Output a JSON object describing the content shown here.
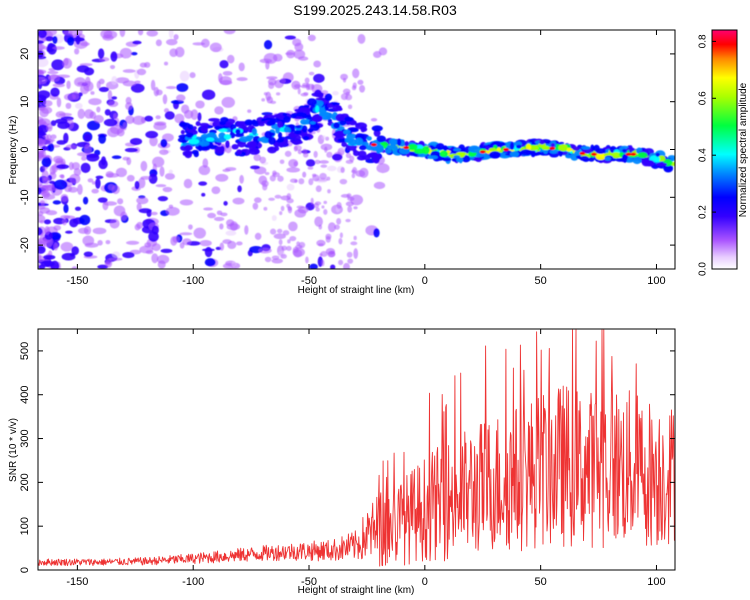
{
  "figure_title": "S199.2025.243.14.58.R03",
  "chart_data": [
    {
      "type": "heatmap",
      "title": "S199.2025.243.14.58.R03",
      "xlabel": "Height of straight line (km)",
      "ylabel": "Frequency (Hz)",
      "xlim": [
        -167,
        108
      ],
      "ylim": [
        -25,
        25
      ],
      "xticks": [
        -150,
        -100,
        -50,
        0,
        50,
        100
      ],
      "yticks": [
        -20,
        -10,
        0,
        10,
        20
      ],
      "colorbar": {
        "label": "Normalized spectral amplitude",
        "range": [
          0.0,
          0.84
        ],
        "ticks": [
          0.0,
          0.2,
          0.4,
          0.6,
          0.8
        ],
        "tick_labels": [
          "0.0",
          "0.2",
          "0.4",
          "0.6",
          "0.8"
        ],
        "colors": [
          "#ffffff",
          "#cc88ff",
          "#6600ff",
          "#0000ff",
          "#00ffff",
          "#00ff00",
          "#ffff00",
          "#ff0000",
          "#ff0080"
        ]
      },
      "ridge": {
        "x": [
          -100,
          -90,
          -80,
          -70,
          -60,
          -50,
          -45,
          -40,
          -35,
          -30,
          -25,
          -20,
          -10,
          0,
          10,
          20,
          30,
          40,
          50,
          60,
          70,
          80,
          90,
          100,
          107
        ],
        "frequency": [
          2,
          3,
          2.5,
          3,
          4,
          6,
          9,
          7,
          4,
          2,
          1,
          1,
          0.5,
          0,
          -1,
          -1,
          0,
          0,
          0.5,
          0,
          -1,
          -1,
          -1,
          -2,
          -3
        ]
      }
    },
    {
      "type": "line",
      "xlabel": "Height of straight line (km)",
      "ylabel": "SNR (10 * v/v)",
      "xlim": [
        -167,
        108
      ],
      "ylim": [
        0,
        550
      ],
      "xticks": [
        -150,
        -100,
        -50,
        0,
        50,
        100
      ],
      "yticks": [
        0,
        100,
        200,
        300,
        400,
        500
      ],
      "color": "#ee3333",
      "envelope": {
        "x": [
          -167,
          -140,
          -120,
          -100,
          -80,
          -60,
          -40,
          -30,
          -25,
          -20,
          -10,
          0,
          10,
          20,
          30,
          40,
          50,
          60,
          70,
          80,
          90,
          100,
          108
        ],
        "mean": [
          18,
          18,
          20,
          26,
          34,
          42,
          45,
          55,
          80,
          90,
          110,
          140,
          160,
          180,
          200,
          210,
          230,
          240,
          230,
          240,
          230,
          220,
          220
        ],
        "spread": [
          8,
          8,
          9,
          12,
          16,
          20,
          25,
          35,
          60,
          90,
          100,
          120,
          140,
          150,
          160,
          170,
          180,
          190,
          180,
          190,
          180,
          170,
          160
        ]
      }
    }
  ]
}
